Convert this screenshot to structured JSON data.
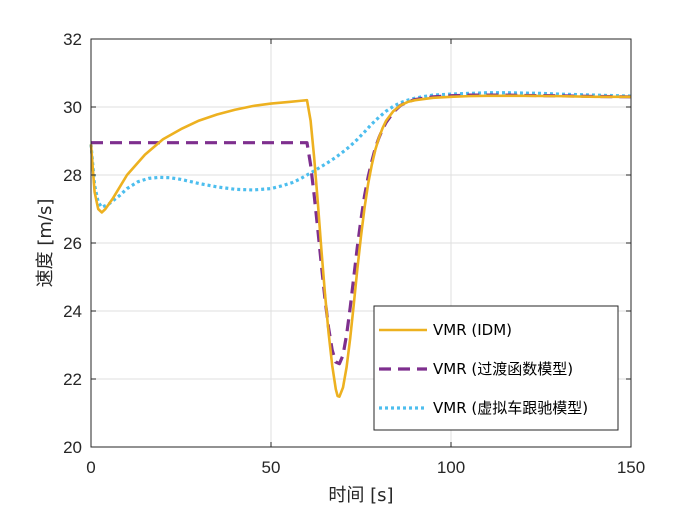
{
  "chart_data": {
    "type": "line",
    "title": "",
    "xlabel": "时间 [s]",
    "ylabel": "速度 [m/s]",
    "xlim": [
      0,
      150
    ],
    "ylim": [
      20,
      32
    ],
    "xticks": [
      0,
      50,
      100,
      150
    ],
    "yticks": [
      20,
      22,
      24,
      26,
      28,
      30,
      32
    ],
    "grid": true,
    "legend_position": "bottom-right",
    "series": [
      {
        "name": "VMR (IDM)",
        "color": "#EDB120",
        "style": "solid",
        "x": [
          0,
          1,
          2,
          3,
          4,
          6,
          8,
          10,
          15,
          20,
          25,
          30,
          35,
          40,
          45,
          50,
          55,
          58,
          60,
          61,
          62,
          63,
          64,
          65,
          66,
          67,
          68,
          68.5,
          69,
          70,
          71,
          72,
          73,
          74,
          75,
          76,
          77,
          78,
          79,
          80,
          81,
          82,
          84,
          86,
          88,
          90,
          95,
          100,
          105,
          110,
          115,
          120,
          130,
          140,
          150
        ],
        "y": [
          28.9,
          27.5,
          27.0,
          26.9,
          27.0,
          27.3,
          27.65,
          28.0,
          28.6,
          29.05,
          29.35,
          29.6,
          29.78,
          29.92,
          30.03,
          30.1,
          30.15,
          30.18,
          30.2,
          29.6,
          28.5,
          27.2,
          25.8,
          24.5,
          23.35,
          22.4,
          21.7,
          21.5,
          21.48,
          21.75,
          22.35,
          23.2,
          24.2,
          25.25,
          26.2,
          27.05,
          27.75,
          28.3,
          28.75,
          29.1,
          29.38,
          29.6,
          29.88,
          30.05,
          30.15,
          30.2,
          30.27,
          30.3,
          30.32,
          30.33,
          30.33,
          30.33,
          30.32,
          30.3,
          30.3
        ]
      },
      {
        "name": "VMR (过渡函数模型)",
        "color": "#7E2F8E",
        "style": "dashed",
        "x": [
          0,
          10,
          20,
          30,
          40,
          50,
          55,
          58,
          60,
          61,
          62,
          63,
          64,
          65,
          66,
          67,
          68,
          69,
          70,
          71,
          72,
          73,
          74,
          75,
          76,
          77,
          78,
          79,
          80,
          81,
          82,
          84,
          86,
          88,
          90,
          95,
          100,
          105,
          110,
          115,
          120,
          130,
          140,
          150
        ],
        "y": [
          28.95,
          28.95,
          28.95,
          28.95,
          28.95,
          28.95,
          28.95,
          28.95,
          28.95,
          28.3,
          27.4,
          26.4,
          25.35,
          24.35,
          23.5,
          22.85,
          22.5,
          22.45,
          22.7,
          23.3,
          24.1,
          25.0,
          25.9,
          26.7,
          27.4,
          27.95,
          28.4,
          28.8,
          29.1,
          29.35,
          29.55,
          29.85,
          30.05,
          30.15,
          30.22,
          30.3,
          30.33,
          30.35,
          30.35,
          30.35,
          30.34,
          30.33,
          30.31,
          30.3
        ]
      },
      {
        "name": "VMR (虚拟车跟驰模型)",
        "color": "#4DBEEE",
        "style": "dotted",
        "x": [
          0,
          0.5,
          1,
          2,
          3,
          5,
          8,
          10,
          13,
          16,
          19,
          22,
          25,
          30,
          35,
          40,
          45,
          50,
          53,
          56,
          58,
          60,
          62,
          64,
          66,
          68,
          70,
          72,
          74,
          76,
          78,
          80,
          82,
          84,
          86,
          88,
          90,
          92,
          95,
          100,
          105,
          110,
          115,
          120,
          125,
          130,
          140,
          150
        ],
        "y": [
          28.9,
          28.3,
          27.7,
          27.2,
          27.05,
          27.15,
          27.4,
          27.6,
          27.8,
          27.9,
          27.93,
          27.92,
          27.87,
          27.75,
          27.65,
          27.58,
          27.56,
          27.6,
          27.68,
          27.78,
          27.88,
          28.0,
          28.12,
          28.25,
          28.38,
          28.52,
          28.68,
          28.85,
          29.05,
          29.27,
          29.5,
          29.7,
          29.88,
          30.02,
          30.13,
          30.2,
          30.26,
          30.3,
          30.35,
          30.38,
          30.4,
          30.42,
          30.42,
          30.41,
          30.4,
          30.38,
          30.35,
          30.32
        ]
      }
    ]
  }
}
